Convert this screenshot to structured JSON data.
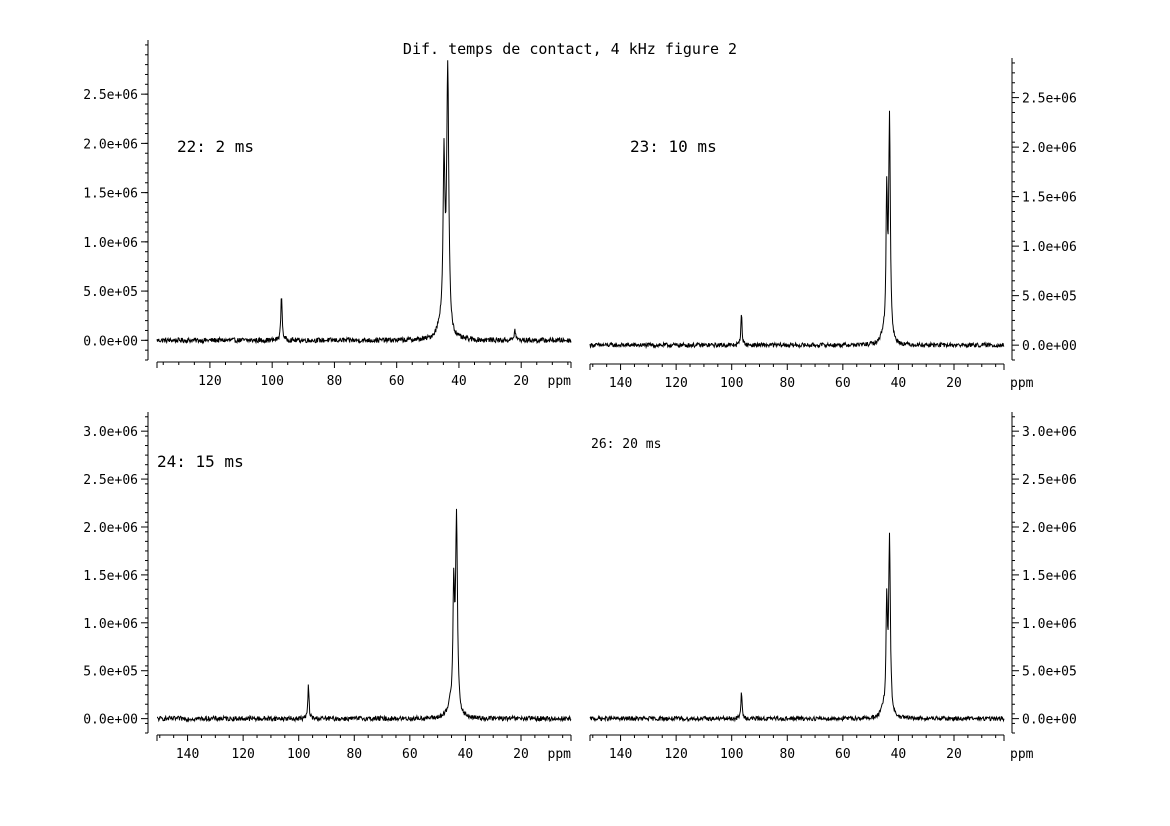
{
  "figure": {
    "title": "Dif. temps de contact, 4 kHz figure 2"
  },
  "chart_data": [
    {
      "type": "line",
      "panel_label": "22: 2 ms",
      "xlabel": "ppm",
      "ylabel": "",
      "x_reversed": true,
      "xlim": [
        137,
        4
      ],
      "ylim": [
        -200000,
        3050000
      ],
      "x_ticks": [
        120,
        100,
        80,
        60,
        40,
        20
      ],
      "x_tick_labels": [
        "120",
        "100",
        "80",
        "60",
        "40",
        "20"
      ],
      "y_ticks": [
        0,
        500000,
        1000000,
        1500000,
        2000000,
        2500000
      ],
      "y_tick_labels": [
        "0.0e+00",
        "5.0e+05",
        "1.0e+06",
        "1.5e+06",
        "2.0e+06",
        "2.5e+06"
      ],
      "y_axis_side": "left",
      "noise_amplitude": 25000,
      "series": [
        {
          "peaks": [
            {
              "x": 97.0,
              "y": 460000,
              "width": 0.25
            },
            {
              "x": 44.8,
              "y": 1700000,
              "width": 0.35
            },
            {
              "x": 43.6,
              "y": 2700000,
              "width": 0.4
            },
            {
              "x": 46.0,
              "y": 120000,
              "width": 1.2
            },
            {
              "x": 22.0,
              "y": 100000,
              "width": 0.3
            }
          ]
        }
      ]
    },
    {
      "type": "line",
      "panel_label": "23: 10 ms",
      "xlabel": "ppm",
      "ylabel": "",
      "x_reversed": true,
      "xlim": [
        151,
        2
      ],
      "ylim": [
        -150000,
        2900000
      ],
      "x_ticks": [
        140,
        120,
        100,
        80,
        60,
        40,
        20
      ],
      "x_tick_labels": [
        "140",
        "120",
        "100",
        "80",
        "60",
        "40",
        "20"
      ],
      "y_ticks": [
        0,
        500000,
        1000000,
        1500000,
        2000000,
        2500000
      ],
      "y_tick_labels": [
        "0.0e+00",
        "5.0e+05",
        "1.0e+06",
        "1.5e+06",
        "2.0e+06",
        "2.5e+06"
      ],
      "y_axis_side": "right",
      "noise_amplitude": 22000,
      "series": [
        {
          "peaks": [
            {
              "x": 96.5,
              "y": 330000,
              "width": 0.25
            },
            {
              "x": 44.2,
              "y": 1450000,
              "width": 0.3
            },
            {
              "x": 43.2,
              "y": 2250000,
              "width": 0.35
            },
            {
              "x": 45.5,
              "y": 90000,
              "width": 1.0
            }
          ]
        }
      ]
    },
    {
      "type": "line",
      "panel_label": "24: 15 ms",
      "xlabel": "ppm",
      "ylabel": "",
      "x_reversed": true,
      "xlim": [
        151,
        2
      ],
      "ylim": [
        -150000,
        3200000
      ],
      "x_ticks": [
        140,
        120,
        100,
        80,
        60,
        40,
        20
      ],
      "x_tick_labels": [
        "140",
        "120",
        "100",
        "80",
        "60",
        "40",
        "20"
      ],
      "y_ticks": [
        0,
        500000,
        1000000,
        1500000,
        2000000,
        2500000,
        3000000
      ],
      "y_tick_labels": [
        "0.0e+00",
        "5.0e+05",
        "1.0e+06",
        "1.5e+06",
        "2.0e+06",
        "2.5e+06",
        "3.0e+06"
      ],
      "y_axis_side": "left",
      "noise_amplitude": 25000,
      "series": [
        {
          "peaks": [
            {
              "x": 96.5,
              "y": 350000,
              "width": 0.25
            },
            {
              "x": 44.2,
              "y": 1250000,
              "width": 0.35
            },
            {
              "x": 43.2,
              "y": 2050000,
              "width": 0.4
            },
            {
              "x": 45.5,
              "y": 110000,
              "width": 1.0
            }
          ]
        }
      ]
    },
    {
      "type": "line",
      "panel_label": "26: 20 ms",
      "xlabel": "ppm",
      "ylabel": "",
      "x_reversed": true,
      "xlim": [
        151,
        2
      ],
      "ylim": [
        -150000,
        3200000
      ],
      "x_ticks": [
        140,
        120,
        100,
        80,
        60,
        40,
        20
      ],
      "x_tick_labels": [
        "140",
        "120",
        "100",
        "80",
        "60",
        "40",
        "20"
      ],
      "y_ticks": [
        0,
        500000,
        1000000,
        1500000,
        2000000,
        2500000,
        3000000
      ],
      "y_tick_labels": [
        "0.0e+00",
        "5.0e+05",
        "1.0e+06",
        "1.5e+06",
        "2.0e+06",
        "2.5e+06",
        "3.0e+06"
      ],
      "y_axis_side": "right",
      "noise_amplitude": 22000,
      "series": [
        {
          "peaks": [
            {
              "x": 96.5,
              "y": 280000,
              "width": 0.25
            },
            {
              "x": 44.2,
              "y": 1150000,
              "width": 0.3
            },
            {
              "x": 43.2,
              "y": 1850000,
              "width": 0.35
            },
            {
              "x": 45.5,
              "y": 80000,
              "width": 1.0
            }
          ]
        }
      ]
    }
  ]
}
